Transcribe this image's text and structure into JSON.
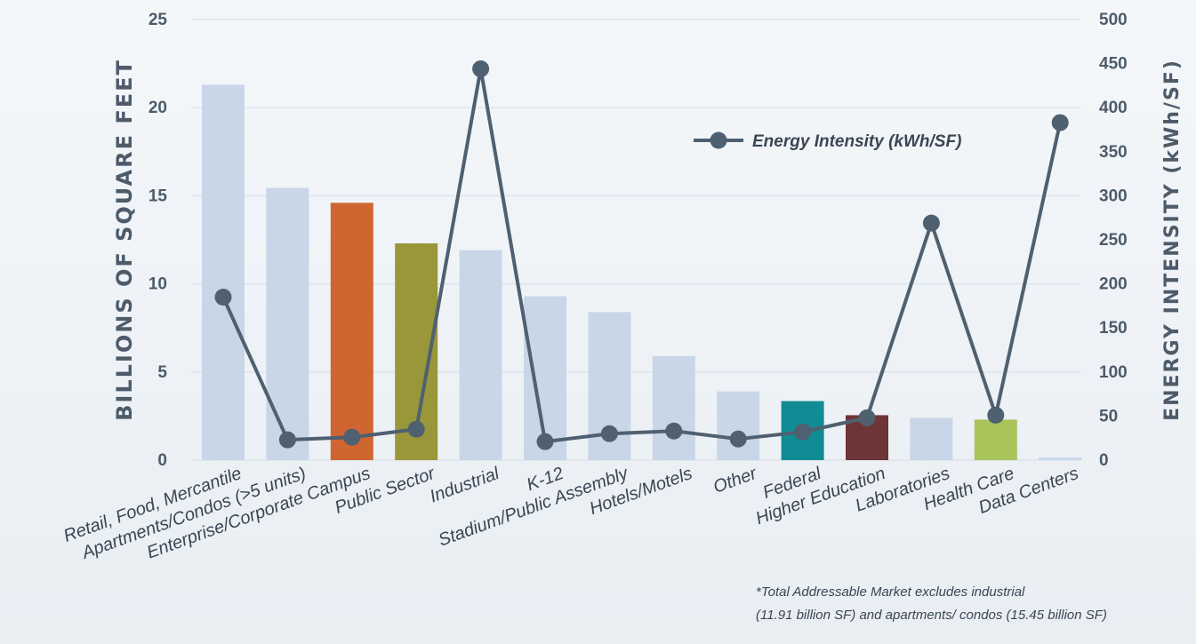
{
  "chart_data": {
    "type": "bar",
    "categories": [
      "Retail, Food, Mercantile",
      "Apartments/Condos (>5 units)",
      "Enterprise/Corporate Campus",
      "Public Sector",
      "Industrial",
      "K-12",
      "Stadium/Public Assembly",
      "Hotels/Motels",
      "Other",
      "Federal",
      "Higher Education",
      "Laboratories",
      "Health Care",
      "Data Centers"
    ],
    "series": [
      {
        "type": "bar",
        "axis": "left",
        "values": [
          21.3,
          15.45,
          14.6,
          12.3,
          11.91,
          9.3,
          8.4,
          5.9,
          3.9,
          3.35,
          2.55,
          2.4,
          2.3,
          0.15
        ],
        "colors": [
          "#c9d6e8",
          "#c9d6e8",
          "#cf6530",
          "#9a963a",
          "#c9d6e8",
          "#c9d6e8",
          "#c9d6e8",
          "#c9d6e8",
          "#c9d6e8",
          "#118b94",
          "#6e3536",
          "#c9d6e8",
          "#a9c45a",
          "#c9d6e8"
        ]
      },
      {
        "type": "line",
        "axis": "right",
        "name": "Energy Intensity (kWh/SF)",
        "color": "#4f6070",
        "values": [
          185,
          23,
          26,
          35,
          444,
          21,
          30,
          33,
          24,
          32,
          48,
          269,
          51,
          383
        ]
      }
    ],
    "ylabel": "BILLIONS OF SQUARE FEET",
    "ylabel_right": "ENERGY INTENSITY (kWh/SF)",
    "ylim": [
      0,
      25
    ],
    "ylim_right": [
      0,
      500
    ],
    "yticks": [
      "0",
      "5",
      "10",
      "15",
      "20",
      "25"
    ],
    "yticks_right": [
      "0",
      "50",
      "100",
      "150",
      "200",
      "250",
      "300",
      "350",
      "400",
      "450",
      "500"
    ],
    "grid": true,
    "legend": {
      "placement": "top-right",
      "label": "Energy Intensity (kWh/SF)"
    }
  },
  "footnote": {
    "line1": "*Total Addressable Market excludes industrial",
    "line2": "(11.91 billion SF) and apartments/ condos (15.45 billion SF)"
  }
}
